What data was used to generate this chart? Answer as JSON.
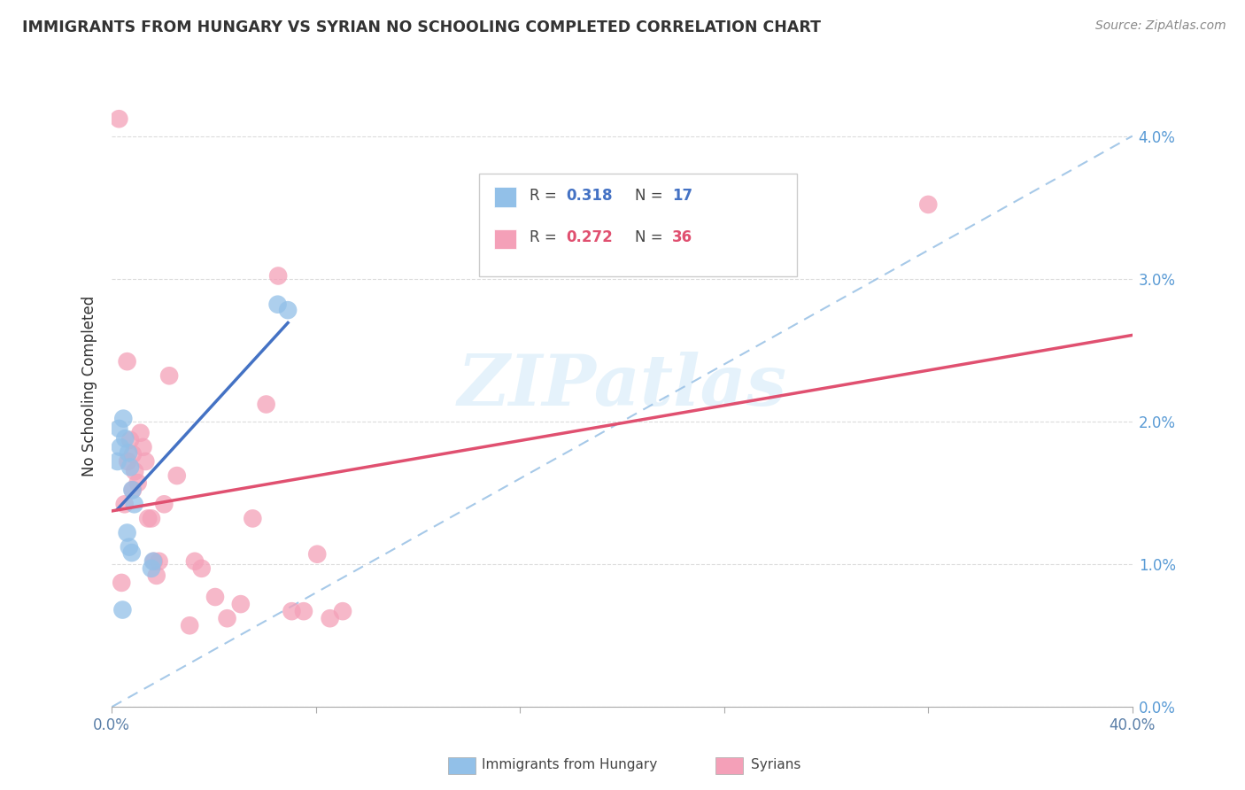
{
  "title": "IMMIGRANTS FROM HUNGARY VS SYRIAN NO SCHOOLING COMPLETED CORRELATION CHART",
  "source": "Source: ZipAtlas.com",
  "ylabel": "No Schooling Completed",
  "legend_r1": "R = ",
  "legend_v1": "0.318",
  "legend_n1_label": "N = ",
  "legend_n1": "17",
  "legend_r2": "R = ",
  "legend_v2": "0.272",
  "legend_n2_label": "N = ",
  "legend_n2": "36",
  "legend_label1": "Immigrants from Hungary",
  "legend_label2": "Syrians",
  "watermark": "ZIPatlas",
  "xlim": [
    0.0,
    40.0
  ],
  "ylim": [
    0.0,
    4.5
  ],
  "blue_color": "#92C0E8",
  "pink_color": "#F4A0B8",
  "blue_line_color": "#4472C4",
  "pink_line_color": "#E05070",
  "dashed_line_color": "#9DC3E6",
  "hungary_points_x": [
    0.22,
    0.33,
    0.28,
    0.45,
    0.52,
    0.65,
    0.72,
    0.8,
    0.88,
    0.6,
    0.68,
    0.78,
    1.55,
    1.62,
    6.5,
    6.9,
    0.42
  ],
  "hungary_points_y": [
    1.72,
    1.82,
    1.95,
    2.02,
    1.88,
    1.78,
    1.68,
    1.52,
    1.42,
    1.22,
    1.12,
    1.08,
    0.97,
    1.02,
    2.82,
    2.78,
    0.68
  ],
  "syria_points_x": [
    0.28,
    0.5,
    0.6,
    0.72,
    0.82,
    0.9,
    1.02,
    1.12,
    1.22,
    1.32,
    1.42,
    1.55,
    1.65,
    1.75,
    1.85,
    2.05,
    2.25,
    2.55,
    3.05,
    3.25,
    3.52,
    4.05,
    4.52,
    5.05,
    5.52,
    6.05,
    6.52,
    7.05,
    7.52,
    8.05,
    8.55,
    9.05,
    32.0,
    0.38,
    0.62,
    0.82
  ],
  "syria_points_y": [
    4.12,
    1.42,
    2.42,
    1.87,
    1.77,
    1.65,
    1.57,
    1.92,
    1.82,
    1.72,
    1.32,
    1.32,
    1.02,
    0.92,
    1.02,
    1.42,
    2.32,
    1.62,
    0.57,
    1.02,
    0.97,
    0.77,
    0.62,
    0.72,
    1.32,
    2.12,
    3.02,
    0.67,
    0.67,
    1.07,
    0.62,
    0.67,
    3.52,
    0.87,
    1.72,
    1.52
  ],
  "yticks": [
    0.0,
    1.0,
    2.0,
    3.0,
    4.0
  ],
  "ytick_labels": [
    "0.0%",
    "1.0%",
    "2.0%",
    "3.0%",
    "4.0%"
  ],
  "xtick_positions": [
    0.0,
    8.0,
    16.0,
    24.0,
    32.0,
    40.0
  ]
}
